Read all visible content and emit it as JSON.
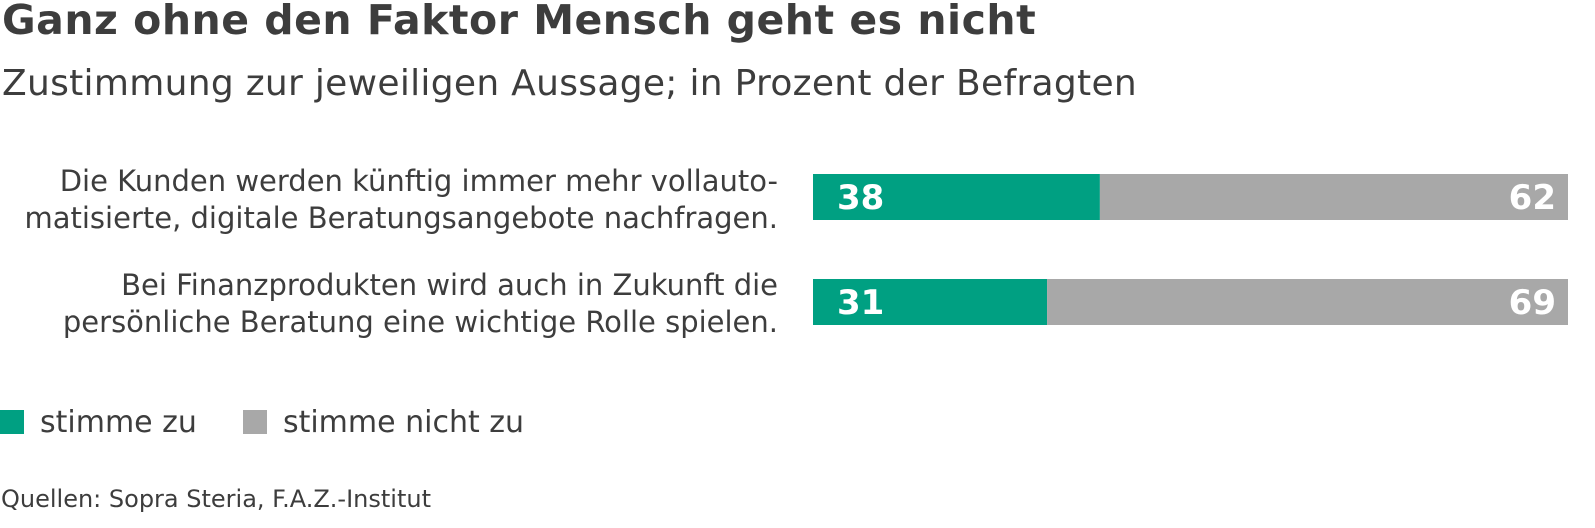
{
  "title": "Ganz ohne den Faktor Mensch geht es nicht",
  "subtitle": "Zustimmung zur jeweiligen Aussage; in Prozent der Befragten",
  "source": "Quellen: Sopra Steria, F.A.Z.-Institut",
  "colors": {
    "agree": "#00a082",
    "disagree": "#a8a8a8",
    "text": "#3d3d3d"
  },
  "chart_data": {
    "type": "bar",
    "orientation": "horizontal",
    "stacked": true,
    "categories": [
      {
        "line1": "Die Kunden werden künftig immer mehr vollauto-",
        "line2": "matisierte, digitale Beratungsangebote nachfragen."
      },
      {
        "line1": "Bei Finanzprodukten wird auch in Zukunft die",
        "line2": "persönliche Beratung eine wichtige Rolle spielen."
      }
    ],
    "series": [
      {
        "name": "stimme zu",
        "values": [
          38,
          31
        ]
      },
      {
        "name": "stimme nicht zu",
        "values": [
          62,
          69
        ]
      }
    ],
    "xlim": [
      0,
      100
    ],
    "grid": false,
    "legend": "bottom-left"
  }
}
